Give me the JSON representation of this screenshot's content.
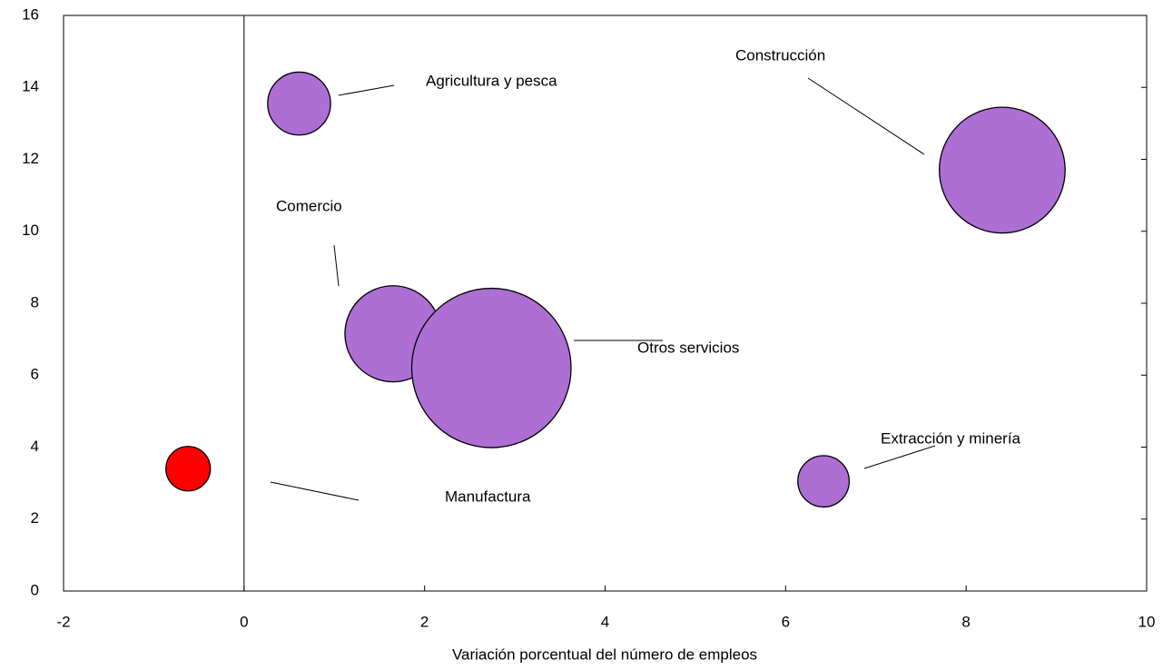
{
  "chart_data": {
    "type": "bubble",
    "x_label": "Variación porcentual del número de empleos",
    "labels": [
      "Manufactura",
      "Agricultura y pesca",
      "Construcción",
      "Comercio",
      "Otros servicios",
      "Extracción y minería"
    ],
    "x": [
      -0.62,
      0.61,
      8.4,
      1.65,
      2.74,
      6.42
    ],
    "values": [
      3.4,
      13.55,
      11.7,
      7.15,
      6.2,
      3.05
    ],
    "sizes": [
      6,
      12,
      48,
      28,
      77,
      8
    ],
    "colors": [
      "#ff0000",
      "#ad6fd4",
      "#ad6fd4",
      "#ad6fd4",
      "#ad6fd4",
      "#ad6fd4"
    ],
    "xlim": [
      -2,
      10
    ],
    "xticks": [
      -2,
      0,
      2,
      4,
      6,
      8,
      10
    ],
    "ylim": [
      0,
      16
    ],
    "yticks": [
      0,
      2,
      4,
      6,
      8,
      10,
      12,
      14,
      16
    ]
  }
}
